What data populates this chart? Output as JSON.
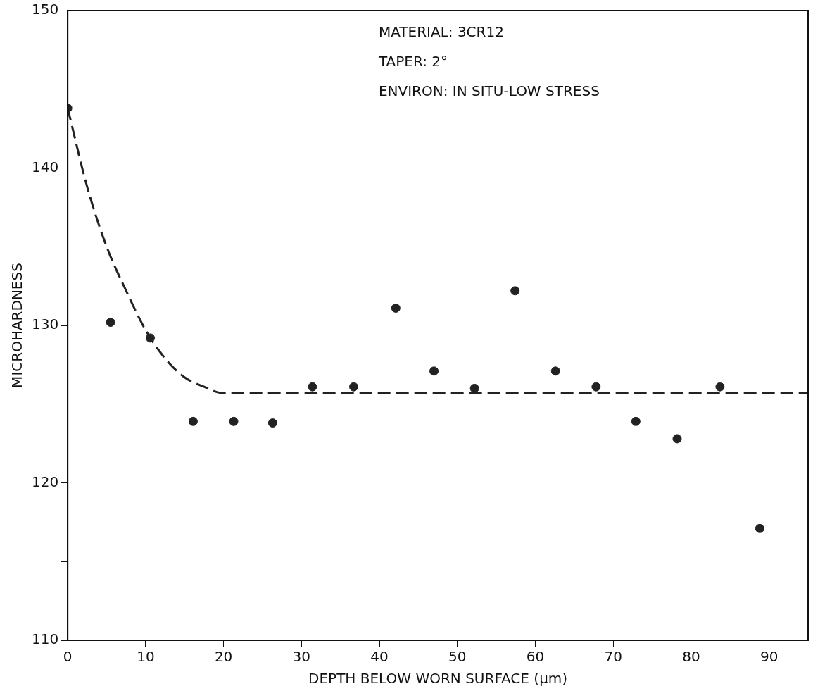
{
  "chart_data": {
    "type": "scatter",
    "xlabel": "DEPTH BELOW WORN SURFACE (μm)",
    "ylabel": "MICROHARDNESS",
    "annotations": [
      "MATERIAL: 3CR12",
      "TAPER: 2°",
      "ENVIRON: IN SITU-LOW STRESS"
    ],
    "xlim": [
      0,
      95
    ],
    "xticks": [
      0,
      10,
      20,
      30,
      40,
      50,
      60,
      70,
      80,
      90
    ],
    "ylim": [
      110,
      150
    ],
    "yticks": [
      110,
      {
        "value": 115,
        "label": null
      },
      120,
      {
        "value": 125,
        "label": null
      },
      130,
      {
        "value": 135,
        "label": null
      },
      140,
      {
        "value": 145,
        "label": null
      },
      150
    ],
    "grid": false,
    "legend": false,
    "series": [
      {
        "type": "scatter",
        "color": "#222222",
        "marker": "circle",
        "x": [
          0,
          5.5,
          10.6,
          16.1,
          21.3,
          26.3,
          31.4,
          36.7,
          42.1,
          47.0,
          52.2,
          57.4,
          62.6,
          67.8,
          72.9,
          78.2,
          83.7,
          88.8
        ],
        "values": [
          143.8,
          130.2,
          129.2,
          123.9,
          123.9,
          123.8,
          126.1,
          126.1,
          131.1,
          127.1,
          126.0,
          132.2,
          127.1,
          126.1,
          123.9,
          122.8,
          126.1,
          117.1
        ]
      },
      {
        "type": "line",
        "color": "#222222",
        "marker": "none",
        "line_style": "dashed",
        "x": [
          0,
          2.5,
          5,
          7.5,
          10,
          12.5,
          15,
          17.5,
          20,
          95
        ],
        "values": [
          143.8,
          138.8,
          135.0,
          132.2,
          129.7,
          127.9,
          126.7,
          126.1,
          125.7,
          125.7
        ]
      }
    ]
  }
}
